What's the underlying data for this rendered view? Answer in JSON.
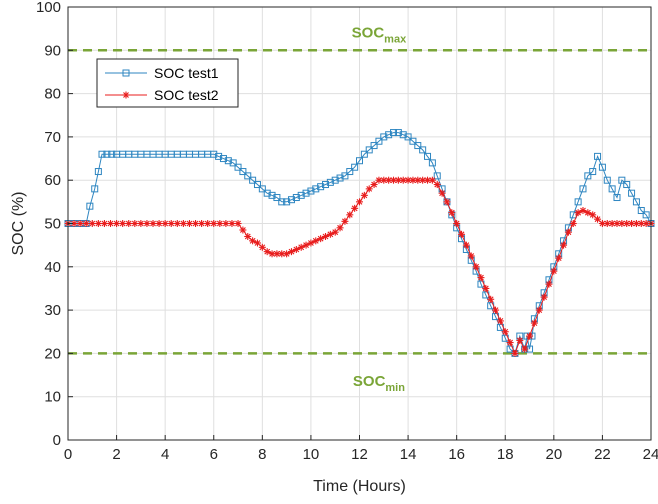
{
  "chart_data": {
    "type": "line",
    "xlabel": "Time (Hours)",
    "ylabel": "SOC (%)",
    "xlim": [
      0,
      24
    ],
    "ylim": [
      0,
      100
    ],
    "xticks": [
      0,
      2,
      4,
      6,
      8,
      10,
      12,
      14,
      16,
      18,
      20,
      22,
      24
    ],
    "yticks": [
      0,
      10,
      20,
      30,
      40,
      50,
      60,
      70,
      80,
      90,
      100
    ],
    "grid": true,
    "legend_position": "top-left",
    "series": [
      {
        "name": "SOC test1",
        "color": "#2e86c1",
        "marker": "square",
        "x": [
          0,
          0.25,
          0.5,
          0.75,
          0.9,
          1.1,
          1.25,
          1.4,
          1.6,
          1.8,
          2.0,
          2.25,
          2.5,
          2.75,
          3.0,
          3.25,
          3.5,
          3.75,
          4.0,
          4.25,
          4.5,
          4.75,
          5.0,
          5.25,
          5.5,
          5.75,
          6.0,
          6.2,
          6.4,
          6.6,
          6.8,
          7.0,
          7.2,
          7.4,
          7.6,
          7.8,
          8.0,
          8.2,
          8.4,
          8.6,
          8.8,
          9.0,
          9.2,
          9.4,
          9.6,
          9.8,
          10.0,
          10.2,
          10.4,
          10.6,
          10.8,
          11.0,
          11.2,
          11.4,
          11.6,
          11.8,
          12.0,
          12.2,
          12.4,
          12.6,
          12.8,
          13.0,
          13.2,
          13.4,
          13.6,
          13.8,
          14.0,
          14.2,
          14.4,
          14.6,
          14.8,
          15.0,
          15.2,
          15.4,
          15.6,
          15.8,
          16.0,
          16.2,
          16.4,
          16.6,
          16.8,
          17.0,
          17.2,
          17.4,
          17.6,
          17.8,
          18.0,
          18.2,
          18.4,
          18.6,
          18.8,
          18.9,
          19.0,
          19.1,
          19.2,
          19.4,
          19.6,
          19.8,
          20.0,
          20.2,
          20.4,
          20.6,
          20.8,
          21.0,
          21.2,
          21.4,
          21.6,
          21.8,
          22.0,
          22.2,
          22.4,
          22.6,
          22.8,
          23.0,
          23.2,
          23.4,
          23.6,
          23.8,
          24.0
        ],
        "y": [
          50,
          50,
          50,
          50,
          54,
          58,
          62,
          66,
          66,
          66,
          66,
          66,
          66,
          66,
          66,
          66,
          66,
          66,
          66,
          66,
          66,
          66,
          66,
          66,
          66,
          66,
          66,
          65.5,
          65,
          64.5,
          64,
          63,
          62,
          61,
          60,
          59,
          58,
          57,
          56.5,
          56,
          55,
          55,
          55.5,
          56,
          56.5,
          57,
          57.5,
          58,
          58.5,
          59,
          59.5,
          60,
          60.5,
          61,
          62,
          63,
          64.5,
          66,
          67,
          68,
          69,
          70,
          70.5,
          71,
          71,
          70.5,
          70,
          69,
          68,
          67,
          65.5,
          64,
          61,
          58,
          55,
          52,
          49,
          46.5,
          44,
          41.5,
          39,
          36,
          33.5,
          31,
          28.5,
          26,
          23.5,
          21,
          20,
          24,
          21,
          24,
          21,
          24,
          28,
          31,
          34,
          37,
          40,
          43,
          46,
          49,
          52,
          55,
          58,
          61,
          62,
          65.5,
          63,
          60,
          58,
          56,
          60,
          59,
          57,
          55,
          53,
          52,
          50
        ]
      },
      {
        "name": "SOC test2",
        "color": "#e81c1c",
        "marker": "asterisk",
        "x": [
          0,
          0.25,
          0.5,
          0.75,
          1.0,
          1.25,
          1.5,
          1.75,
          2.0,
          2.25,
          2.5,
          2.75,
          3.0,
          3.25,
          3.5,
          3.75,
          4.0,
          4.25,
          4.5,
          4.75,
          5.0,
          5.25,
          5.5,
          5.75,
          6.0,
          6.25,
          6.5,
          6.75,
          7.0,
          7.2,
          7.4,
          7.6,
          7.8,
          8.0,
          8.2,
          8.4,
          8.6,
          8.8,
          9.0,
          9.2,
          9.4,
          9.6,
          9.8,
          10.0,
          10.2,
          10.4,
          10.6,
          10.8,
          11.0,
          11.2,
          11.4,
          11.6,
          11.8,
          12.0,
          12.2,
          12.4,
          12.6,
          12.8,
          13.0,
          13.2,
          13.4,
          13.6,
          13.8,
          14.0,
          14.2,
          14.4,
          14.6,
          14.8,
          15.0,
          15.2,
          15.4,
          15.6,
          15.8,
          16.0,
          16.2,
          16.4,
          16.6,
          16.8,
          17.0,
          17.2,
          17.4,
          17.6,
          17.8,
          18.0,
          18.2,
          18.4,
          18.6,
          18.8,
          19.0,
          19.2,
          19.4,
          19.6,
          19.8,
          20.0,
          20.2,
          20.4,
          20.6,
          20.8,
          21.0,
          21.2,
          21.4,
          21.6,
          21.8,
          22.0,
          22.2,
          22.4,
          22.6,
          22.8,
          23.0,
          23.2,
          23.4,
          23.6,
          23.8,
          24.0
        ],
        "y": [
          50,
          50,
          50,
          50,
          50,
          50,
          50,
          50,
          50,
          50,
          50,
          50,
          50,
          50,
          50,
          50,
          50,
          50,
          50,
          50,
          50,
          50,
          50,
          50,
          50,
          50,
          50,
          50,
          50,
          48.5,
          47,
          46,
          45.5,
          44.5,
          43.5,
          43,
          43,
          43,
          43,
          43.5,
          44,
          44.5,
          45,
          45.5,
          46,
          46.5,
          47,
          47.5,
          48,
          49,
          50.5,
          52,
          53.5,
          55,
          56.5,
          58,
          59,
          60,
          60,
          60,
          60,
          60,
          60,
          60,
          60,
          60,
          60,
          60,
          60,
          59,
          57,
          55,
          52.5,
          50,
          47.5,
          45,
          42.5,
          40,
          37.5,
          35,
          32.5,
          30,
          27.5,
          25,
          22.5,
          20,
          23,
          21,
          24,
          27,
          30,
          33,
          36,
          39,
          42,
          45,
          48,
          50,
          52.5,
          53,
          52.5,
          52,
          51,
          50,
          50,
          50,
          50,
          50,
          50,
          50,
          50,
          50,
          50,
          50
        ]
      }
    ],
    "reference_lines": [
      {
        "y": 90,
        "color": "#7aa537",
        "style": "dashed"
      },
      {
        "y": 20,
        "color": "#7aa537",
        "style": "dashed"
      }
    ],
    "annotations": [
      {
        "base": "SOC",
        "sub": "max",
        "color": "#7aa537",
        "x": 12.8,
        "y": 93
      },
      {
        "base": "SOC",
        "sub": "min",
        "color": "#7aa537",
        "x": 12.8,
        "y": 12.5
      }
    ]
  }
}
